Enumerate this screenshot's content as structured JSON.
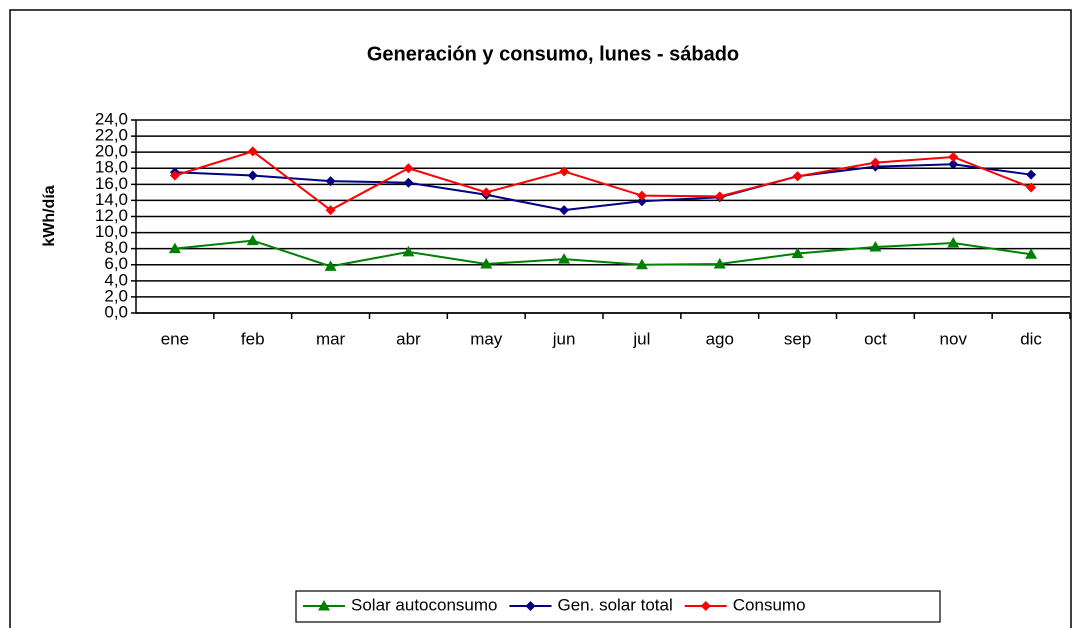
{
  "chart_data": {
    "type": "line",
    "title": "Generación y consumo, lunes - sábado",
    "y_label": "kWh/día",
    "categories": [
      "ene",
      "feb",
      "mar",
      "abr",
      "may",
      "jun",
      "jul",
      "ago",
      "sep",
      "oct",
      "nov",
      "dic"
    ],
    "series": [
      {
        "name": "Solar autoconsumo",
        "color": "#008000",
        "marker": "triangle",
        "values": [
          8.0,
          9.0,
          5.8,
          7.6,
          6.1,
          6.7,
          6.0,
          6.1,
          7.4,
          8.2,
          8.7,
          7.3
        ]
      },
      {
        "name": "Gen. solar total",
        "color": "#000080",
        "marker": "diamond",
        "values": [
          17.5,
          17.1,
          16.4,
          16.2,
          14.7,
          12.8,
          13.9,
          14.4,
          17.0,
          18.2,
          18.5,
          17.2
        ]
      },
      {
        "name": "Consumo",
        "color": "#ff0000",
        "marker": "diamond",
        "values": [
          17.1,
          20.1,
          12.8,
          18.0,
          15.0,
          17.6,
          14.6,
          14.5,
          17.0,
          18.7,
          19.4,
          15.6
        ]
      }
    ],
    "ylim": [
      0,
      24
    ],
    "yticks": [
      {
        "value": 0,
        "label": "0,0"
      },
      {
        "value": 2,
        "label": "2,0"
      },
      {
        "value": 4,
        "label": "4,0"
      },
      {
        "value": 6,
        "label": "6,0"
      },
      {
        "value": 8,
        "label": "8,0"
      },
      {
        "value": 10,
        "label": "10,0"
      },
      {
        "value": 12,
        "label": "12,0"
      },
      {
        "value": 14,
        "label": "14,0"
      },
      {
        "value": 16,
        "label": "16,0"
      },
      {
        "value": 18,
        "label": "18,0"
      },
      {
        "value": 20,
        "label": "20,0"
      },
      {
        "value": 22,
        "label": "22,0"
      },
      {
        "value": 24,
        "label": "24,0"
      }
    ],
    "grid": true,
    "legend": "bottom"
  }
}
